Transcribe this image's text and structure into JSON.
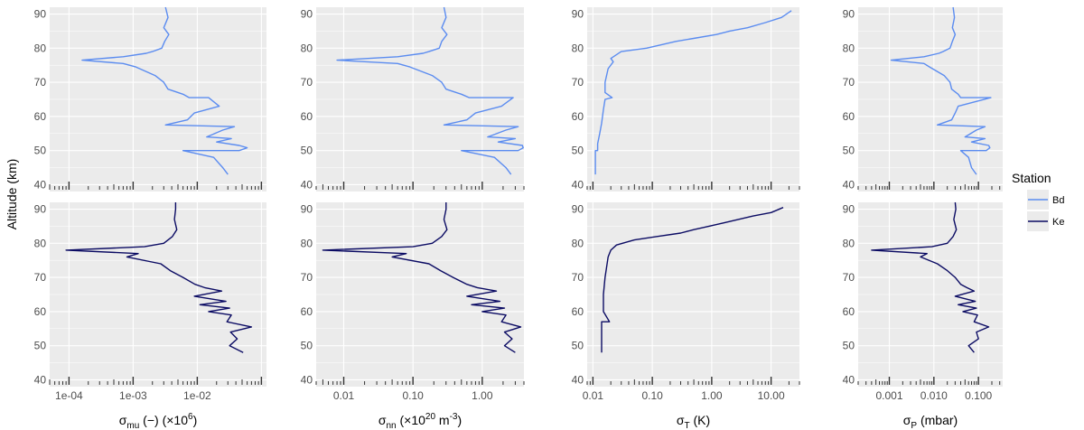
{
  "y_axis_label": "Altitude (km)",
  "legend": {
    "title": "Station",
    "entries": [
      {
        "label": "Bd",
        "color": "#5b8cf0"
      },
      {
        "label": "Ke",
        "color": "#0b0b63"
      }
    ]
  },
  "colors": {
    "panel_bg": "#ebebeb",
    "grid": "#ffffff",
    "tick": "#333333"
  },
  "columns": [
    {
      "id": "mu",
      "xlabel_main": "σ",
      "xlabel_sub": "mu",
      "xlabel_tail": " (−) (×10",
      "xlabel_sup": "6",
      "xlabel_end": ")",
      "ticks": [
        "1e-04",
        "1e-03",
        "1e-02"
      ]
    },
    {
      "id": "nn",
      "xlabel_main": "σ",
      "xlabel_sub": "nn",
      "xlabel_tail": " (×10",
      "xlabel_sup": "20",
      "xlabel_end": " m",
      "xlabel_sup2": "-3",
      "xlabel_end2": ")",
      "ticks": [
        "0.01",
        "0.10",
        "1.00"
      ]
    },
    {
      "id": "T",
      "xlabel_main": "σ",
      "xlabel_sub": "T",
      "xlabel_tail": " (K)",
      "ticks": [
        "0.01",
        "0.10",
        "1.00",
        "10.00"
      ]
    },
    {
      "id": "P",
      "xlabel_main": "σ",
      "xlabel_sub": "P",
      "xlabel_tail": " (mbar)",
      "ticks": [
        "0.001",
        "0.010",
        "0.100"
      ]
    }
  ],
  "chart_data": [
    {
      "type": "line",
      "station": "Bd",
      "quantity": "σ_mu",
      "xscale": "log",
      "xlim": [
        5e-05,
        0.12
      ],
      "ylim": [
        38,
        92
      ],
      "x": [
        0.0032,
        0.0035,
        0.003,
        0.0036,
        0.0031,
        0.0028,
        0.002,
        0.0016,
        0.0007,
        0.00016,
        0.0007,
        0.0011,
        0.0022,
        0.003,
        0.0035,
        0.006,
        0.0075,
        0.015,
        0.022,
        0.009,
        0.007,
        0.0032,
        0.038,
        0.025,
        0.014,
        0.034,
        0.02,
        0.045,
        0.06,
        0.045,
        0.006,
        0.018,
        0.025,
        0.03
      ],
      "y": [
        92,
        89,
        86,
        84,
        82,
        80,
        79,
        78.5,
        77.5,
        76.5,
        75.5,
        74.5,
        72,
        70,
        68,
        66.5,
        65.5,
        65.5,
        63,
        61,
        59,
        57.5,
        57,
        56,
        54,
        53.5,
        52.5,
        51.5,
        50.8,
        50,
        50,
        48,
        45,
        43
      ]
    },
    {
      "type": "line",
      "station": "Ke",
      "quantity": "σ_mu",
      "xscale": "log",
      "xlim": [
        5e-05,
        0.12
      ],
      "ylim": [
        38,
        92
      ],
      "x": [
        0.0046,
        0.0046,
        0.0044,
        0.0048,
        0.0041,
        0.003,
        0.0015,
        9e-05,
        0.0012,
        0.0008,
        0.0027,
        0.0038,
        0.006,
        0.0092,
        0.013,
        0.024,
        0.009,
        0.028,
        0.011,
        0.032,
        0.015,
        0.034,
        0.029,
        0.07,
        0.033,
        0.042,
        0.032,
        0.052
      ],
      "y": [
        92,
        90,
        87,
        84,
        82,
        80,
        79,
        78,
        77,
        76,
        74,
        72,
        70,
        68,
        67,
        66,
        64.5,
        63,
        62,
        61,
        60,
        59,
        57,
        55.5,
        54,
        52,
        50,
        48
      ]
    },
    {
      "type": "line",
      "station": "Bd",
      "quantity": "σ_nn",
      "xscale": "log",
      "xlim": [
        0.004,
        4.0
      ],
      "ylim": [
        38,
        92
      ],
      "x": [
        0.28,
        0.3,
        0.26,
        0.31,
        0.26,
        0.24,
        0.17,
        0.14,
        0.06,
        0.008,
        0.06,
        0.09,
        0.19,
        0.26,
        0.3,
        0.5,
        0.65,
        2.8,
        1.9,
        0.8,
        0.6,
        0.28,
        3.3,
        2.2,
        1.2,
        3.0,
        1.7,
        3.8,
        3.9,
        3.3,
        0.5,
        1.5,
        2.2,
        2.6
      ],
      "y": [
        92,
        89,
        86,
        84,
        82,
        80,
        79,
        78.5,
        77.5,
        76.5,
        75.5,
        74.5,
        72,
        70,
        68,
        66.5,
        65.5,
        65.5,
        63,
        61,
        59,
        57.5,
        57,
        56,
        54,
        53.5,
        52.5,
        51.5,
        50.8,
        50,
        50,
        48,
        45,
        43
      ]
    },
    {
      "type": "line",
      "station": "Ke",
      "quantity": "σ_nn",
      "xscale": "log",
      "xlim": [
        0.004,
        4.0
      ],
      "ylim": [
        38,
        92
      ],
      "x": [
        0.3,
        0.3,
        0.28,
        0.31,
        0.26,
        0.19,
        0.1,
        0.005,
        0.08,
        0.05,
        0.17,
        0.25,
        0.38,
        0.6,
        0.85,
        1.6,
        0.6,
        1.8,
        0.7,
        2.1,
        1.0,
        2.2,
        1.9,
        3.6,
        2.1,
        2.7,
        2.1,
        3.0
      ],
      "y": [
        92,
        90,
        87,
        84,
        82,
        80,
        79,
        78,
        77,
        76,
        74,
        72,
        70,
        68,
        67,
        66,
        64.5,
        63,
        62,
        61,
        60,
        59,
        57,
        55.5,
        54,
        52,
        50,
        48
      ]
    },
    {
      "type": "line",
      "station": "Bd",
      "quantity": "σ_T",
      "xscale": "log",
      "xlim": [
        0.008,
        30
      ],
      "ylim": [
        38,
        92
      ],
      "x": [
        22,
        15,
        8,
        4,
        2,
        1.2,
        0.55,
        0.25,
        0.08,
        0.03,
        0.02,
        0.022,
        0.018,
        0.017,
        0.016,
        0.016,
        0.021,
        0.016,
        0.015,
        0.014,
        0.013,
        0.012,
        0.012,
        0.011,
        0.011
      ],
      "y": [
        91,
        89,
        87.5,
        86,
        85,
        84,
        83,
        82,
        80,
        79,
        77,
        76,
        74,
        72,
        70,
        67,
        65.5,
        65,
        62,
        58,
        55,
        52,
        50,
        50,
        43
      ]
    },
    {
      "type": "line",
      "station": "Ke",
      "quantity": "σ_T",
      "xscale": "log",
      "xlim": [
        0.008,
        30
      ],
      "ylim": [
        38,
        92
      ],
      "x": [
        16,
        10,
        5,
        2.8,
        1.6,
        0.9,
        0.5,
        0.3,
        0.12,
        0.05,
        0.025,
        0.02,
        0.018,
        0.017,
        0.016,
        0.015,
        0.015,
        0.019,
        0.014,
        0.014,
        0.014
      ],
      "y": [
        90.5,
        89,
        88,
        87,
        86,
        85,
        84,
        83,
        82,
        81,
        79.5,
        78,
        76,
        73,
        70,
        65,
        60,
        57,
        57,
        52,
        48
      ]
    },
    {
      "type": "line",
      "station": "Bd",
      "quantity": "σ_P",
      "xscale": "log",
      "xlim": [
        0.0002,
        0.35
      ],
      "ylim": [
        38,
        92
      ],
      "x": [
        0.027,
        0.029,
        0.026,
        0.03,
        0.026,
        0.023,
        0.016,
        0.013,
        0.006,
        0.0011,
        0.006,
        0.008,
        0.017,
        0.023,
        0.025,
        0.035,
        0.04,
        0.19,
        0.035,
        0.03,
        0.025,
        0.012,
        0.14,
        0.09,
        0.05,
        0.14,
        0.07,
        0.17,
        0.18,
        0.15,
        0.04,
        0.06,
        0.07,
        0.09
      ],
      "y": [
        92,
        89,
        86,
        84,
        82,
        80,
        79,
        78.5,
        77.5,
        76.5,
        75.5,
        74.5,
        72,
        70,
        68,
        66.5,
        65.5,
        65.5,
        63,
        61,
        59,
        57.5,
        57,
        56,
        54,
        53.5,
        52.5,
        51.5,
        50.8,
        50,
        50,
        48,
        45,
        43
      ]
    },
    {
      "type": "line",
      "station": "Ke",
      "quantity": "σ_P",
      "xscale": "log",
      "xlim": [
        0.0002,
        0.35
      ],
      "ylim": [
        38,
        92
      ],
      "x": [
        0.03,
        0.031,
        0.028,
        0.032,
        0.027,
        0.02,
        0.009,
        0.0004,
        0.007,
        0.005,
        0.012,
        0.02,
        0.03,
        0.04,
        0.055,
        0.08,
        0.03,
        0.085,
        0.035,
        0.09,
        0.045,
        0.095,
        0.08,
        0.17,
        0.09,
        0.1,
        0.06,
        0.08
      ],
      "y": [
        92,
        90,
        87,
        84,
        82,
        80,
        79,
        78,
        77,
        76,
        74,
        72,
        70,
        68,
        67,
        66,
        64.5,
        63,
        62,
        61,
        60,
        59,
        57,
        55.5,
        54,
        52,
        50,
        48
      ]
    }
  ]
}
